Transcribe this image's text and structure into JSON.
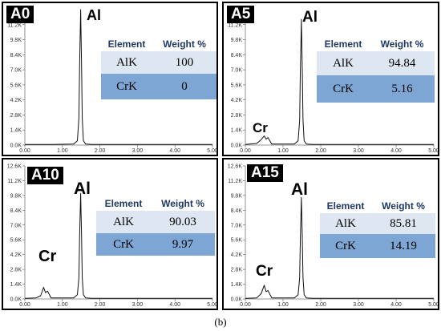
{
  "caption": "(b)",
  "chart_data": [
    {
      "type": "line",
      "badge": "A0",
      "y_ticks": [
        "0.0K",
        "1.4K",
        "2.8K",
        "4.2K",
        "5.6K",
        "7.0K",
        "8.4K",
        "9.8K",
        "11.2K",
        "12.6K"
      ],
      "x_ticks": [
        "0.00",
        "1.00",
        "2.00",
        "3.00",
        "4.00",
        "5.00"
      ],
      "xlim": [
        0,
        5
      ],
      "ylim": [
        0,
        12.6
      ],
      "x": [
        0,
        0.3,
        0.42,
        0.5,
        0.55,
        0.6,
        0.7,
        1.3,
        1.4,
        1.44,
        1.46,
        1.487,
        1.51,
        1.53,
        1.56,
        1.62,
        1.8,
        5
      ],
      "y": [
        0.05,
        0.05,
        0.05,
        0.05,
        0.05,
        0.05,
        0.05,
        0.1,
        0.4,
        2.5,
        7.5,
        12.6,
        7.5,
        2.5,
        0.4,
        0.1,
        0.05,
        0.05
      ],
      "labels": {
        "al": "Al",
        "cr": ""
      },
      "table": {
        "header": [
          "Element",
          "Weight %"
        ],
        "rows": [
          [
            "AlK",
            "100"
          ],
          [
            "CrK",
            "0"
          ]
        ]
      }
    },
    {
      "type": "line",
      "badge": "A5",
      "y_ticks": [
        "0.0K",
        "1.4K",
        "2.8K",
        "4.2K",
        "5.6K",
        "7.0K",
        "8.4K",
        "9.8K",
        "11.2K",
        "12.6K"
      ],
      "x_ticks": [
        "0.00",
        "1.00",
        "2.00",
        "3.00",
        "4.00",
        "5.00"
      ],
      "xlim": [
        0,
        5
      ],
      "ylim": [
        0,
        12.6
      ],
      "x": [
        0,
        0.3,
        0.42,
        0.5,
        0.55,
        0.6,
        0.7,
        1.3,
        1.4,
        1.44,
        1.46,
        1.487,
        1.51,
        1.53,
        1.56,
        1.62,
        1.8,
        5
      ],
      "y": [
        0.05,
        0.15,
        0.5,
        0.85,
        0.55,
        0.7,
        0.1,
        0.1,
        0.4,
        2.3,
        7,
        11.7,
        7,
        2.3,
        0.4,
        0.1,
        0.05,
        0.05
      ],
      "labels": {
        "al": "Al",
        "cr": "Cr"
      },
      "table": {
        "header": [
          "Element",
          "Weight %"
        ],
        "rows": [
          [
            "AlK",
            "94.84"
          ],
          [
            "CrK",
            "5.16"
          ]
        ]
      }
    },
    {
      "type": "line",
      "badge": "A10",
      "y_ticks": [
        "0.0K",
        "1.4K",
        "2.8K",
        "4.2K",
        "5.6K",
        "7.0K",
        "8.4K",
        "9.8K",
        "11.2K",
        "12.6K"
      ],
      "x_ticks": [
        "0.00",
        "1.00",
        "2.00",
        "3.00",
        "4.00",
        "5.00"
      ],
      "xlim": [
        0,
        5
      ],
      "ylim": [
        0,
        12.6
      ],
      "x": [
        0,
        0.3,
        0.42,
        0.5,
        0.55,
        0.6,
        0.7,
        1.3,
        1.4,
        1.44,
        1.46,
        1.487,
        1.51,
        1.53,
        1.56,
        1.62,
        1.8,
        5
      ],
      "y": [
        0.05,
        0.1,
        0.3,
        1.1,
        0.6,
        0.75,
        0.1,
        0.1,
        0.4,
        2,
        6,
        10,
        6,
        2,
        0.4,
        0.1,
        0.05,
        0.05
      ],
      "labels": {
        "al": "Al",
        "cr": "Cr"
      },
      "table": {
        "header": [
          "Element",
          "Weight %"
        ],
        "rows": [
          [
            "AlK",
            "90.03"
          ],
          [
            "CrK",
            "9.97"
          ]
        ]
      }
    },
    {
      "type": "line",
      "badge": "A15",
      "y_ticks": [
        "0.0K",
        "1.4K",
        "2.8K",
        "4.2K",
        "5.6K",
        "7.0K",
        "8.4K",
        "9.8K",
        "11.2K",
        "12.6K"
      ],
      "x_ticks": [
        "0.00",
        "1.00",
        "2.00",
        "3.00",
        "4.00",
        "5.00"
      ],
      "xlim": [
        0,
        5
      ],
      "ylim": [
        0,
        12.6
      ],
      "x": [
        0,
        0.3,
        0.42,
        0.5,
        0.55,
        0.6,
        0.7,
        1.3,
        1.4,
        1.44,
        1.46,
        1.487,
        1.51,
        1.53,
        1.56,
        1.62,
        1.8,
        5
      ],
      "y": [
        0.05,
        0.1,
        0.5,
        1.3,
        0.7,
        0.8,
        0.1,
        0.1,
        0.4,
        2,
        5.8,
        9.6,
        5.8,
        2,
        0.4,
        0.1,
        0.05,
        0.05
      ],
      "labels": {
        "al": "Al",
        "cr": "Cr"
      },
      "table": {
        "header": [
          "Element",
          "Weight %"
        ],
        "rows": [
          [
            "AlK",
            "85.81"
          ],
          [
            "CrK",
            "14.19"
          ]
        ]
      }
    }
  ]
}
